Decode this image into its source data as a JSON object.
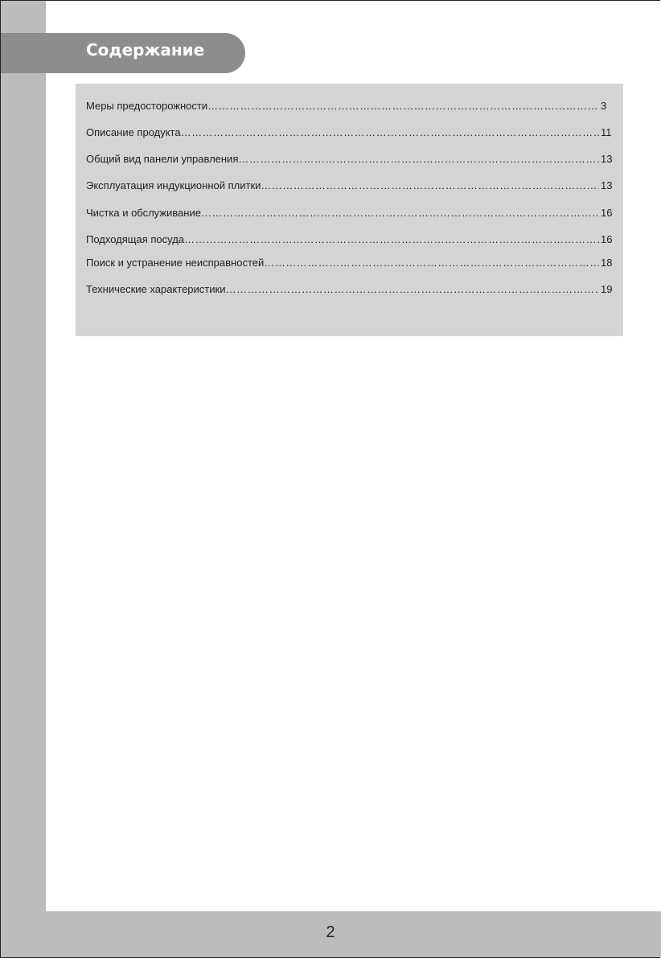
{
  "header": {
    "title": "Содержание"
  },
  "toc": [
    {
      "label": "Меры предосторожности",
      "page": "3"
    },
    {
      "label": "Описание продукта",
      "page": "11"
    },
    {
      "label": "Общий вид панели управления",
      "page": "13"
    },
    {
      "label": "Эксплуатация индукционной плитки",
      "page": "13"
    },
    {
      "label": "Чистка и обслуживание",
      "page": "16"
    },
    {
      "label": "Подходящая посуда",
      "page": "16"
    },
    {
      "label": "Поиск и устранение неисправностей",
      "page": "18"
    },
    {
      "label": "Технические характеристики",
      "page": "19"
    }
  ],
  "footer": {
    "page_number": "2"
  },
  "colors": {
    "sidebar": "#bcbcbc",
    "header_tab": "#8e8c8c",
    "toc_box": "#d4d4d4"
  }
}
